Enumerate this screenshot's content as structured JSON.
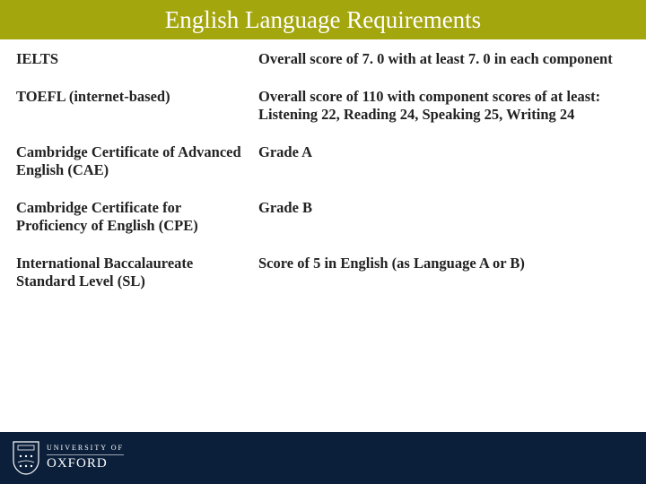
{
  "title": {
    "text": "English Language Requirements",
    "font_size": 27,
    "color": "#ffffff",
    "background": "#a4a60e",
    "height": 44
  },
  "table": {
    "font_size": 16.5,
    "row_gap": 22,
    "rows": [
      {
        "test": "IELTS",
        "requirement": "Overall score of 7. 0 with at least 7. 0 in each component"
      },
      {
        "test": "TOEFL (internet-based)",
        "requirement": "Overall score of 110 with component scores of at least: Listening 22, Reading 24, Speaking 25, Writing 24"
      },
      {
        "test": "Cambridge Certificate of Advanced English (CAE)",
        "requirement": "Grade A"
      },
      {
        "test": "Cambridge Certificate for Proficiency of English (CPE)",
        "requirement": "Grade B"
      },
      {
        "test": "International Baccalaureate Standard Level (SL)",
        "requirement": "Score of 5 in English (as Language A or B)"
      }
    ]
  },
  "footer": {
    "background": "#0b1f3a",
    "height": 58,
    "logo_top": "UNIVERSITY OF",
    "logo_main": "OXFORD"
  }
}
